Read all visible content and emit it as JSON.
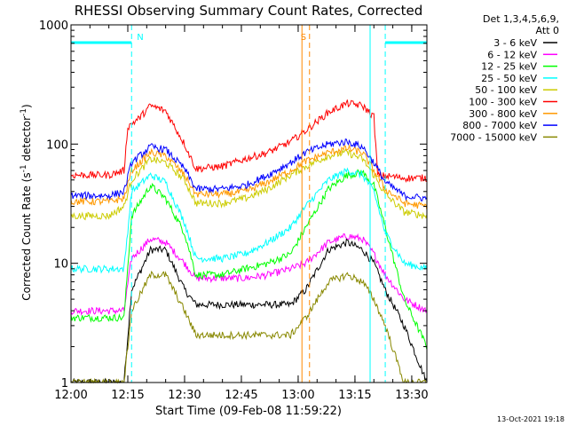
{
  "chart_data": {
    "type": "line",
    "title": "RHESSI Observing Summary Count Rates, Corrected",
    "xlabel": "Start Time (09-Feb-08 11:59:22)",
    "ylabel_main": "Corrected Count Rate (s",
    "ylabel_sup1": "-1",
    "ylabel_mid": " detector",
    "ylabel_sup2": "-1",
    "ylabel_end": ")",
    "yscale": "log",
    "ylim": [
      1,
      1000
    ],
    "xlim_min": [
      0,
      100
    ],
    "y_ticks": [
      "1",
      "10",
      "100",
      "1000"
    ],
    "x_ticks": [
      {
        "t": 0,
        "label": "12:00"
      },
      {
        "t": 15,
        "label": "12:15"
      },
      {
        "t": 30,
        "label": "12:30"
      },
      {
        "t": 45,
        "label": "12:45"
      },
      {
        "t": 60,
        "label": "13:00"
      },
      {
        "t": 75,
        "label": "13:15"
      },
      {
        "t": 90,
        "label": "13:30"
      }
    ],
    "legend_header": [
      "Det 1,3,4,5,6,9,",
      "Att 0"
    ],
    "legend_position": "right",
    "series": [
      {
        "name": "3 - 6 keV",
        "color": "#000000",
        "points": [
          [
            0,
            1
          ],
          [
            14,
            1
          ],
          [
            16,
            6
          ],
          [
            21,
            13
          ],
          [
            25,
            13
          ],
          [
            30,
            6
          ],
          [
            33,
            4.5
          ],
          [
            40,
            4.5
          ],
          [
            46,
            4.5
          ],
          [
            52,
            4.5
          ],
          [
            58,
            4.5
          ],
          [
            62,
            6
          ],
          [
            68,
            13
          ],
          [
            73,
            15
          ],
          [
            77,
            13
          ],
          [
            80,
            10
          ],
          [
            83,
            6
          ],
          [
            88,
            3
          ],
          [
            94,
            1
          ]
        ]
      },
      {
        "name": "6 - 12 keV",
        "color": "#ff00ff",
        "points": [
          [
            0,
            4
          ],
          [
            14,
            4
          ],
          [
            16,
            11
          ],
          [
            21,
            16
          ],
          [
            25,
            15
          ],
          [
            30,
            10
          ],
          [
            33,
            7.5
          ],
          [
            40,
            7.5
          ],
          [
            46,
            7.5
          ],
          [
            52,
            8
          ],
          [
            58,
            9
          ],
          [
            62,
            10
          ],
          [
            68,
            15
          ],
          [
            73,
            17
          ],
          [
            77,
            16
          ],
          [
            80,
            12
          ],
          [
            83,
            8
          ],
          [
            88,
            5
          ],
          [
            94,
            4
          ]
        ]
      },
      {
        "name": "12 - 25 keV",
        "color": "#00ff00",
        "points": [
          [
            0,
            3.5
          ],
          [
            10,
            3.5
          ],
          [
            14,
            3.5
          ],
          [
            16,
            25
          ],
          [
            21,
            45
          ],
          [
            25,
            35
          ],
          [
            30,
            18
          ],
          [
            33,
            8
          ],
          [
            40,
            8
          ],
          [
            46,
            9
          ],
          [
            52,
            10
          ],
          [
            58,
            12
          ],
          [
            62,
            20
          ],
          [
            68,
            42
          ],
          [
            73,
            55
          ],
          [
            77,
            58
          ],
          [
            80,
            45
          ],
          [
            83,
            20
          ],
          [
            88,
            5
          ],
          [
            94,
            2
          ]
        ]
      },
      {
        "name": "25 - 50 keV",
        "color": "#00ffff",
        "points": [
          [
            0,
            9
          ],
          [
            10,
            9
          ],
          [
            14,
            9
          ],
          [
            16,
            40
          ],
          [
            21,
            55
          ],
          [
            25,
            48
          ],
          [
            30,
            22
          ],
          [
            33,
            11
          ],
          [
            40,
            11
          ],
          [
            46,
            12
          ],
          [
            52,
            15
          ],
          [
            58,
            20
          ],
          [
            62,
            30
          ],
          [
            68,
            50
          ],
          [
            73,
            60
          ],
          [
            77,
            55
          ],
          [
            80,
            40
          ],
          [
            83,
            18
          ],
          [
            88,
            10
          ],
          [
            94,
            9
          ]
        ]
      },
      {
        "name": "50 - 100 keV",
        "color": "#cccc00",
        "points": [
          [
            0,
            25
          ],
          [
            10,
            25
          ],
          [
            14,
            30
          ],
          [
            16,
            50
          ],
          [
            21,
            75
          ],
          [
            25,
            70
          ],
          [
            30,
            50
          ],
          [
            33,
            32
          ],
          [
            40,
            32
          ],
          [
            46,
            35
          ],
          [
            52,
            42
          ],
          [
            58,
            55
          ],
          [
            62,
            65
          ],
          [
            68,
            80
          ],
          [
            73,
            85
          ],
          [
            77,
            75
          ],
          [
            80,
            55
          ],
          [
            83,
            38
          ],
          [
            88,
            27
          ],
          [
            94,
            25
          ]
        ]
      },
      {
        "name": "100 - 300 keV",
        "color": "#ff0000",
        "points": [
          [
            0,
            55
          ],
          [
            10,
            55
          ],
          [
            14,
            60
          ],
          [
            15,
            140
          ],
          [
            18,
            165
          ],
          [
            21,
            210
          ],
          [
            25,
            190
          ],
          [
            30,
            100
          ],
          [
            33,
            62
          ],
          [
            40,
            65
          ],
          [
            46,
            75
          ],
          [
            52,
            85
          ],
          [
            58,
            105
          ],
          [
            62,
            130
          ],
          [
            68,
            185
          ],
          [
            73,
            220
          ],
          [
            77,
            210
          ],
          [
            80,
            170
          ],
          [
            81,
            55
          ],
          [
            88,
            52
          ],
          [
            94,
            52
          ]
        ]
      },
      {
        "name": "300 - 800 keV",
        "color": "#ff9900",
        "points": [
          [
            0,
            33
          ],
          [
            10,
            33
          ],
          [
            14,
            35
          ],
          [
            16,
            60
          ],
          [
            21,
            85
          ],
          [
            25,
            80
          ],
          [
            30,
            55
          ],
          [
            33,
            38
          ],
          [
            40,
            38
          ],
          [
            46,
            40
          ],
          [
            52,
            48
          ],
          [
            58,
            60
          ],
          [
            62,
            72
          ],
          [
            68,
            85
          ],
          [
            73,
            92
          ],
          [
            77,
            85
          ],
          [
            80,
            60
          ],
          [
            83,
            42
          ],
          [
            88,
            32
          ],
          [
            94,
            30
          ]
        ]
      },
      {
        "name": "800 - 7000 keV",
        "color": "#0000ff",
        "points": [
          [
            0,
            37
          ],
          [
            10,
            37
          ],
          [
            14,
            40
          ],
          [
            16,
            70
          ],
          [
            21,
            95
          ],
          [
            25,
            90
          ],
          [
            30,
            62
          ],
          [
            33,
            42
          ],
          [
            40,
            42
          ],
          [
            46,
            45
          ],
          [
            52,
            55
          ],
          [
            58,
            70
          ],
          [
            62,
            85
          ],
          [
            68,
            100
          ],
          [
            73,
            105
          ],
          [
            77,
            95
          ],
          [
            80,
            70
          ],
          [
            83,
            48
          ],
          [
            88,
            37
          ],
          [
            94,
            35
          ]
        ]
      },
      {
        "name": "7000 - 15000 keV",
        "color": "#888800",
        "points": [
          [
            0,
            1
          ],
          [
            14,
            1
          ],
          [
            16,
            4
          ],
          [
            21,
            8
          ],
          [
            25,
            8
          ],
          [
            30,
            4
          ],
          [
            33,
            2.5
          ],
          [
            40,
            2.5
          ],
          [
            46,
            2.5
          ],
          [
            52,
            2.5
          ],
          [
            58,
            2.5
          ],
          [
            62,
            3.5
          ],
          [
            68,
            7
          ],
          [
            73,
            8
          ],
          [
            77,
            7
          ],
          [
            80,
            5
          ],
          [
            83,
            3
          ],
          [
            88,
            1
          ],
          [
            94,
            1
          ]
        ]
      }
    ],
    "annotations": [
      {
        "label": "N",
        "t": 16,
        "color": "#00ffff"
      },
      {
        "label": "S",
        "t": 63,
        "color": "#ff8800"
      }
    ],
    "flag_bars": [
      {
        "color": "#00ffff",
        "ranges": [
          [
            0,
            16
          ],
          [
            83,
            94
          ]
        ]
      }
    ],
    "vertical_lines": [
      {
        "t": 16,
        "color": "#00ffff",
        "style": "dashed"
      },
      {
        "t": 79,
        "color": "#00ffff",
        "style": "solid"
      },
      {
        "t": 83,
        "color": "#00ffff",
        "style": "dashed"
      },
      {
        "t": 94,
        "color": "#00ffff",
        "style": "dashed"
      },
      {
        "t": 61,
        "color": "#ff8800",
        "style": "solid"
      },
      {
        "t": 63,
        "color": "#ff8800",
        "style": "dashed"
      }
    ]
  },
  "footer": {
    "timestamp": "13-Oct-2021 19:18"
  }
}
